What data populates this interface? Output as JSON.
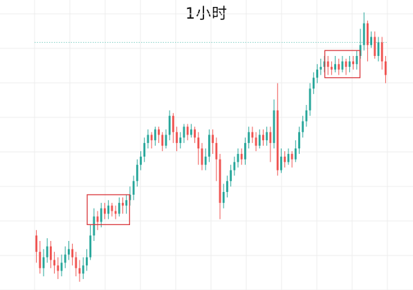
{
  "chart_data": {
    "type": "candlestick",
    "title": "1小时",
    "xlabel": "",
    "ylabel": "",
    "grid": true,
    "colors": {
      "up": "#26a69a",
      "down": "#ef5350",
      "grid": "#ececec",
      "box": "#d9353a",
      "ref_line": "#7fcfc4"
    },
    "ylim": [
      0,
      100
    ],
    "reference_line": 89,
    "candles": [
      [
        18,
        12,
        20,
        8
      ],
      [
        12,
        6,
        16,
        4
      ],
      [
        6,
        10,
        13,
        3
      ],
      [
        10,
        14,
        17,
        8
      ],
      [
        14,
        9,
        16,
        6
      ],
      [
        9,
        7,
        12,
        4
      ],
      [
        7,
        5,
        10,
        2
      ],
      [
        5,
        8,
        11,
        3
      ],
      [
        8,
        11,
        14,
        6
      ],
      [
        11,
        13,
        16,
        9
      ],
      [
        13,
        10,
        15,
        7
      ],
      [
        10,
        6,
        12,
        3
      ],
      [
        6,
        4,
        9,
        1
      ],
      [
        4,
        7,
        10,
        2
      ],
      [
        7,
        10,
        13,
        5
      ],
      [
        10,
        18,
        22,
        9
      ],
      [
        18,
        25,
        28,
        16
      ],
      [
        25,
        23,
        27,
        20
      ],
      [
        23,
        28,
        30,
        21
      ],
      [
        28,
        26,
        30,
        24
      ],
      [
        26,
        29,
        31,
        24
      ],
      [
        29,
        27,
        30,
        25
      ],
      [
        27,
        26,
        29,
        24
      ],
      [
        26,
        30,
        32,
        25
      ],
      [
        30,
        29,
        32,
        26
      ],
      [
        29,
        31,
        33,
        26
      ],
      [
        31,
        33,
        36,
        29
      ],
      [
        33,
        38,
        40,
        31
      ],
      [
        38,
        44,
        46,
        36
      ],
      [
        44,
        47,
        49,
        42
      ],
      [
        47,
        52,
        54,
        45
      ],
      [
        52,
        55,
        57,
        50
      ],
      [
        55,
        53,
        56,
        50
      ],
      [
        53,
        57,
        58,
        51
      ],
      [
        57,
        55,
        58,
        52
      ],
      [
        55,
        51,
        56,
        49
      ],
      [
        51,
        55,
        57,
        50
      ],
      [
        55,
        62,
        64,
        53
      ],
      [
        62,
        56,
        63,
        52
      ],
      [
        56,
        52,
        58,
        49
      ],
      [
        52,
        54,
        56,
        50
      ],
      [
        54,
        58,
        59,
        52
      ],
      [
        58,
        55,
        59,
        53
      ],
      [
        55,
        57,
        59,
        54
      ],
      [
        57,
        54,
        58,
        52
      ],
      [
        54,
        50,
        56,
        44
      ],
      [
        50,
        44,
        52,
        42
      ],
      [
        44,
        47,
        50,
        42
      ],
      [
        47,
        55,
        57,
        45
      ],
      [
        55,
        52,
        57,
        48
      ],
      [
        52,
        46,
        54,
        38
      ],
      [
        46,
        30,
        48,
        24
      ],
      [
        30,
        34,
        37,
        28
      ],
      [
        34,
        38,
        40,
        32
      ],
      [
        38,
        42,
        44,
        36
      ],
      [
        42,
        45,
        47,
        40
      ],
      [
        45,
        48,
        50,
        43
      ],
      [
        48,
        46,
        50,
        44
      ],
      [
        46,
        52,
        54,
        44
      ],
      [
        52,
        56,
        58,
        50
      ],
      [
        56,
        54,
        58,
        52
      ],
      [
        54,
        51,
        56,
        49
      ],
      [
        51,
        55,
        57,
        50
      ],
      [
        55,
        53,
        57,
        51
      ],
      [
        53,
        56,
        58,
        51
      ],
      [
        56,
        52,
        58,
        45
      ],
      [
        52,
        64,
        68,
        50
      ],
      [
        64,
        42,
        74,
        40
      ],
      [
        42,
        47,
        50,
        41
      ],
      [
        47,
        45,
        49,
        43
      ],
      [
        45,
        48,
        50,
        44
      ],
      [
        48,
        46,
        49,
        43
      ],
      [
        46,
        50,
        53,
        45
      ],
      [
        50,
        56,
        58,
        48
      ],
      [
        56,
        60,
        62,
        54
      ],
      [
        60,
        64,
        66,
        58
      ],
      [
        64,
        72,
        74,
        62
      ],
      [
        72,
        76,
        78,
        70
      ],
      [
        76,
        79,
        81,
        74
      ],
      [
        79,
        80,
        83,
        77
      ],
      [
        80,
        82,
        84,
        78
      ],
      [
        82,
        80,
        84,
        77
      ],
      [
        80,
        79,
        82,
        77
      ],
      [
        79,
        81,
        84,
        78
      ],
      [
        81,
        79,
        83,
        77
      ],
      [
        79,
        82,
        84,
        78
      ],
      [
        82,
        80,
        83,
        77
      ],
      [
        80,
        82,
        84,
        78
      ],
      [
        82,
        81,
        84,
        79
      ],
      [
        81,
        84,
        86,
        79
      ],
      [
        84,
        88,
        94,
        83
      ],
      [
        88,
        96,
        100,
        86
      ],
      [
        96,
        88,
        97,
        82
      ],
      [
        88,
        91,
        93,
        87
      ],
      [
        91,
        84,
        93,
        83
      ],
      [
        84,
        89,
        91,
        82
      ],
      [
        89,
        82,
        91,
        79
      ],
      [
        82,
        77,
        84,
        74
      ]
    ]
  }
}
